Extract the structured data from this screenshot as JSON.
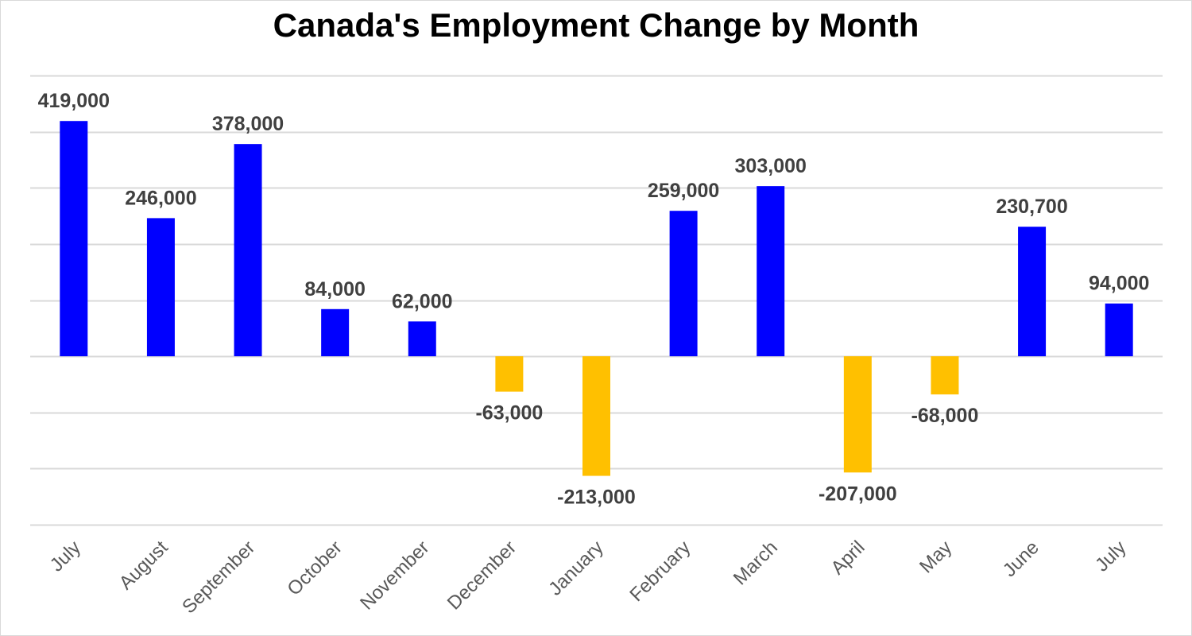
{
  "chart_data": {
    "type": "bar",
    "title": "Canada's Employment Change by Month",
    "categories": [
      "July",
      "August",
      "September",
      "October",
      "November",
      "December",
      "January",
      "February",
      "March",
      "April",
      "May",
      "June",
      "July"
    ],
    "values": [
      419000,
      246000,
      378000,
      84000,
      62000,
      -63000,
      -213000,
      259000,
      303000,
      -207000,
      -68000,
      230700,
      94000
    ],
    "value_labels": [
      "419,000",
      "246,000",
      "378,000",
      "84,000",
      "62,000",
      "-63,000",
      "-213,000",
      "259,000",
      "303,000",
      "-207,000",
      "-68,000",
      "230,700",
      "94,000"
    ],
    "xlabel": "",
    "ylabel": "",
    "ylim": [
      -300000,
      500000
    ],
    "gridlines": true,
    "y_tick_labels_shown": false,
    "legend": "none",
    "colors": {
      "positive": "#0000ff",
      "negative": "#ffc000"
    }
  }
}
